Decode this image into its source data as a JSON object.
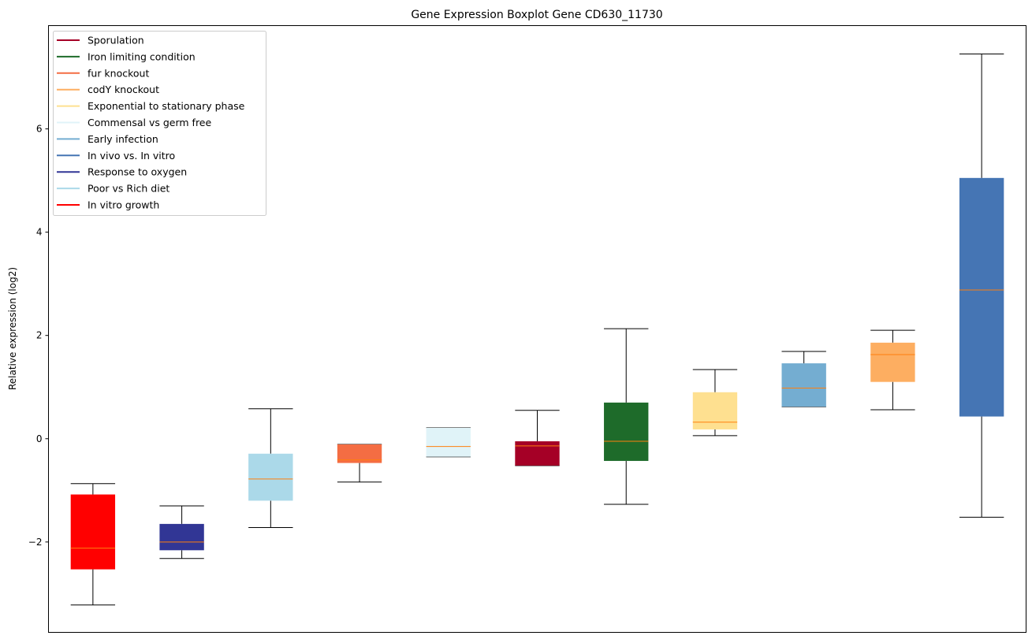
{
  "chart_data": {
    "type": "boxplot",
    "title": "Gene Expression Boxplot Gene CD630_11730",
    "xlabel": "",
    "ylabel": "Relative expression (log2)",
    "ylim": [
      -3.75,
      8.0
    ],
    "yticks": [
      -2,
      0,
      2,
      4,
      6
    ],
    "ytick_labels": [
      "−2",
      "0",
      "2",
      "4",
      "6"
    ],
    "grid": false,
    "legend_position": "top-left",
    "median_color": "#ff7f0e",
    "series": [
      {
        "name": "In vitro growth",
        "color": "#ff0000",
        "whislo": -3.22,
        "q1": -2.53,
        "med": -2.12,
        "q3": -1.08,
        "whishi": -0.87
      },
      {
        "name": "Response to oxygen",
        "color": "#313695",
        "whislo": -2.32,
        "q1": -2.16,
        "med": -2.0,
        "q3": -1.65,
        "whishi": -1.3
      },
      {
        "name": "Poor vs Rich diet",
        "color": "#abd9e9",
        "whislo": -1.72,
        "q1": -1.2,
        "med": -0.78,
        "q3": -0.29,
        "whishi": 0.58
      },
      {
        "name": "fur knockout",
        "color": "#f46d43",
        "whislo": -0.84,
        "q1": -0.47,
        "med": -0.41,
        "q3": -0.11,
        "whishi": -0.11
      },
      {
        "name": "Commensal vs germ free",
        "color": "#e0f3f8",
        "whislo": -0.35,
        "q1": -0.35,
        "med": -0.15,
        "q3": 0.21,
        "whishi": 0.21
      },
      {
        "name": "Sporulation",
        "color": "#a50026",
        "whislo": -0.52,
        "q1": -0.52,
        "med": -0.14,
        "q3": -0.05,
        "whishi": 0.55
      },
      {
        "name": "Iron limiting condition",
        "color": "#1e6b2a",
        "whislo": -1.27,
        "q1": -0.43,
        "med": -0.05,
        "q3": 0.7,
        "whishi": 2.13
      },
      {
        "name": "Exponential to stationary phase",
        "color": "#fee090",
        "whislo": 0.06,
        "q1": 0.18,
        "med": 0.32,
        "q3": 0.9,
        "whishi": 1.34
      },
      {
        "name": "Early infection",
        "color": "#74add1",
        "whislo": 0.62,
        "q1": 0.62,
        "med": 0.98,
        "q3": 1.46,
        "whishi": 1.69
      },
      {
        "name": "codY knockout",
        "color": "#fdae61",
        "whislo": 0.56,
        "q1": 1.1,
        "med": 1.63,
        "q3": 1.86,
        "whishi": 2.1
      },
      {
        "name": "In vivo vs. In vitro",
        "color": "#4575b4",
        "whislo": -1.52,
        "q1": 0.43,
        "med": 2.88,
        "q3": 5.05,
        "whishi": 7.45
      }
    ],
    "legend": [
      {
        "label": "Sporulation",
        "color": "#a50026"
      },
      {
        "label": "Iron limiting condition",
        "color": "#1e6b2a"
      },
      {
        "label": "fur knockout",
        "color": "#f46d43"
      },
      {
        "label": "codY knockout",
        "color": "#fdae61"
      },
      {
        "label": "Exponential to stationary phase",
        "color": "#fee090"
      },
      {
        "label": "Commensal vs germ free",
        "color": "#e0f3f8"
      },
      {
        "label": "Early infection",
        "color": "#74add1"
      },
      {
        "label": "In vivo vs. In vitro",
        "color": "#4575b4"
      },
      {
        "label": "Response to oxygen",
        "color": "#313695"
      },
      {
        "label": "Poor vs Rich diet",
        "color": "#abd9e9"
      },
      {
        "label": "In vitro growth",
        "color": "#ff0000"
      }
    ]
  }
}
